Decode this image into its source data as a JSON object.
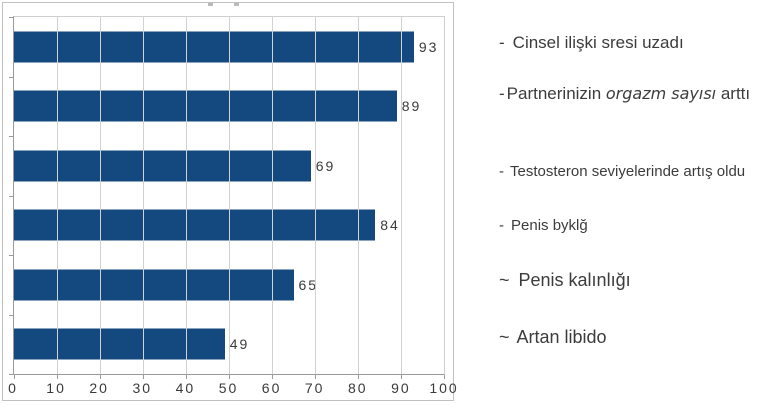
{
  "chart_data": {
    "type": "bar",
    "orientation": "horizontal",
    "title": "",
    "values": [
      93,
      89,
      69,
      84,
      65,
      49
    ],
    "value_labels": [
      "93",
      "89",
      "69",
      "84",
      "65",
      "49"
    ],
    "categories": [
      "",
      "",
      "",
      "",
      "",
      ""
    ],
    "xlim": [
      0,
      100
    ],
    "x_ticks": [
      "0",
      "10",
      "20",
      "30",
      "40",
      "50",
      "60",
      "70",
      "80",
      "90",
      "100"
    ],
    "grid": true,
    "legend_position": "none",
    "bar_color": "#14497f",
    "gridline_color": "#d2d2d2",
    "axis_color": "#9a9a9a"
  },
  "annotations": {
    "items": [
      {
        "bullet": "-",
        "text": "Cinsel ilişki sresi uzadı"
      },
      {
        "bullet": "-",
        "pre": "Partnerinizin ",
        "em": "orgazm sayısı",
        "post": " arttı"
      },
      {
        "bullet": "-",
        "text": "Testosteron seviyelerinde artış oldu"
      },
      {
        "bullet": "-",
        "text": "Penis byklğ"
      },
      {
        "bullet": "~",
        "text": "Penis kalınlığı"
      },
      {
        "bullet": "~",
        "text": "Artan libido"
      }
    ]
  }
}
